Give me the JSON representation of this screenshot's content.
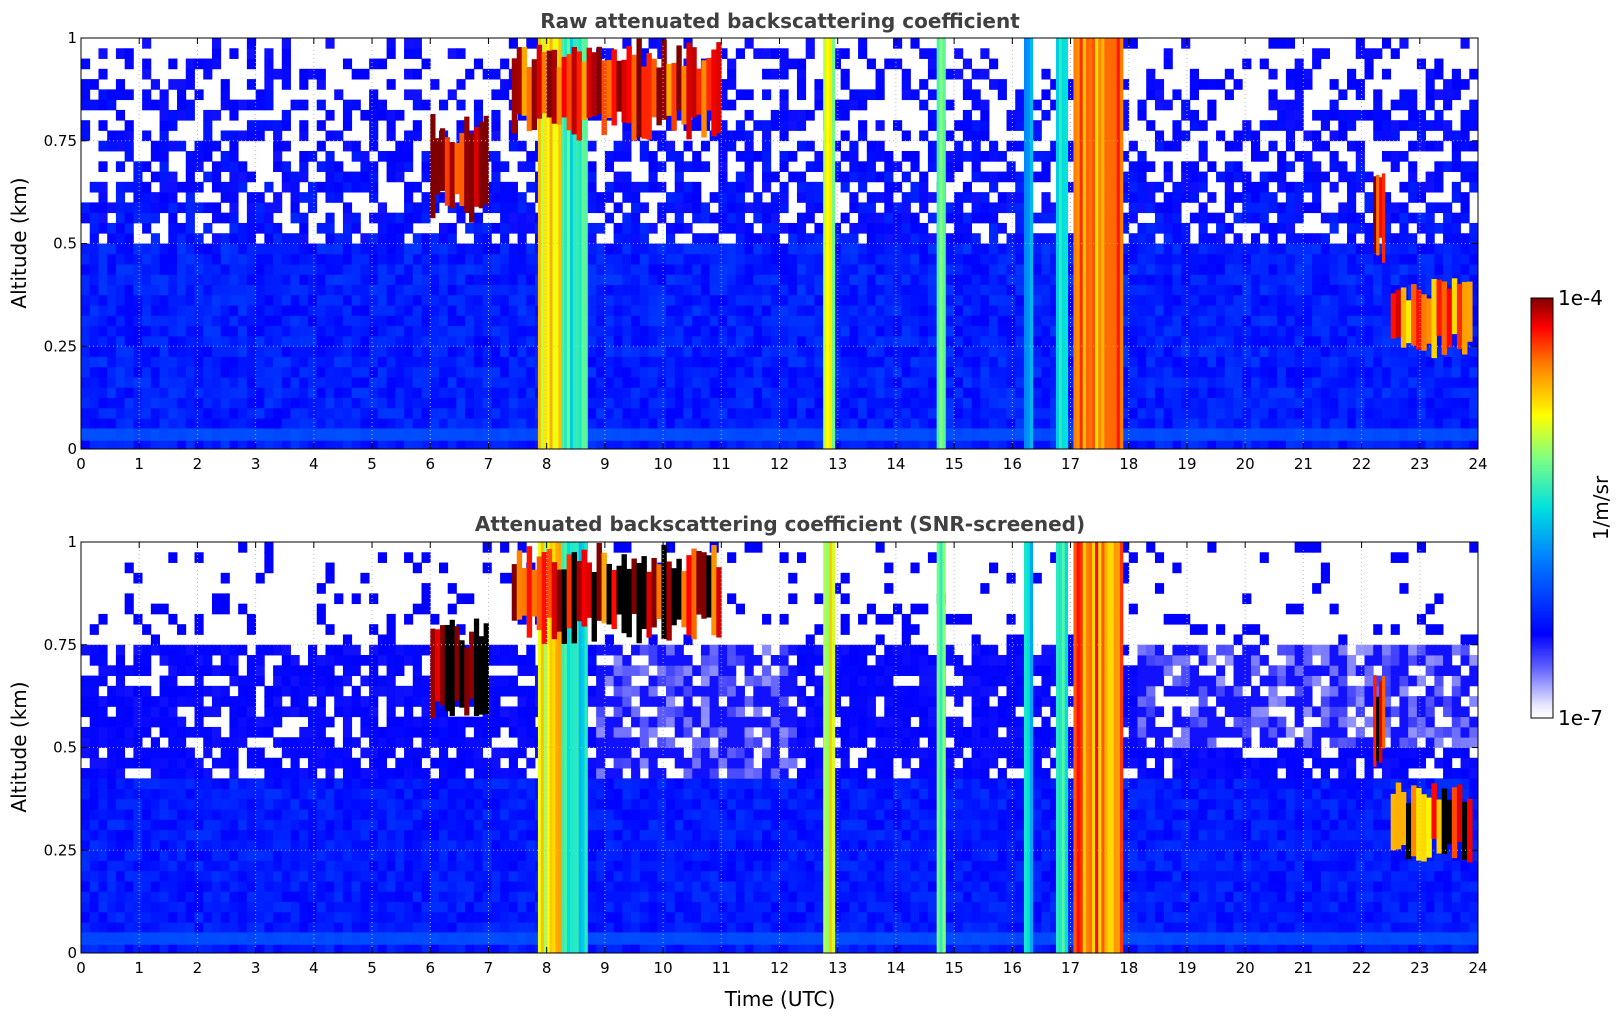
{
  "chart_data": [
    {
      "type": "heatmap",
      "title": "Raw attenuated backscattering coefficient",
      "xlabel": "",
      "ylabel": "Altitude (km)",
      "xlim": [
        0,
        24
      ],
      "ylim": [
        0,
        1
      ],
      "xticks": [
        "0",
        "1",
        "2",
        "3",
        "4",
        "5",
        "6",
        "7",
        "8",
        "9",
        "10",
        "11",
        "12",
        "13",
        "14",
        "15",
        "16",
        "17",
        "18",
        "19",
        "20",
        "21",
        "22",
        "23",
        "24"
      ],
      "yticks": [
        "0",
        "0.25",
        "0.5",
        "0.75",
        "1"
      ],
      "grid": true,
      "screened": false
    },
    {
      "type": "heatmap",
      "title": "Attenuated backscattering coefficient (SNR-screened)",
      "xlabel": "Time (UTC)",
      "ylabel": "Altitude (km)",
      "xlim": [
        0,
        24
      ],
      "ylim": [
        0,
        1
      ],
      "xticks": [
        "0",
        "1",
        "2",
        "3",
        "4",
        "5",
        "6",
        "7",
        "8",
        "9",
        "10",
        "11",
        "12",
        "13",
        "14",
        "15",
        "16",
        "17",
        "18",
        "19",
        "20",
        "21",
        "22",
        "23",
        "24"
      ],
      "yticks": [
        "0",
        "0.25",
        "0.5",
        "0.75",
        "1"
      ],
      "grid": true,
      "screened": true
    }
  ],
  "colorbar": {
    "label": "1/m/sr",
    "max_label": "1e-4",
    "min_label": "1e-7",
    "scale": "log",
    "range": [
      1e-07,
      0.0001
    ],
    "colormap": "jet-with-white-low-end"
  },
  "features": {
    "bright_bands": [
      {
        "x0": 7.85,
        "x1": 8.25,
        "level": 0.72
      },
      {
        "x0": 8.25,
        "x1": 8.7,
        "level": 0.52
      },
      {
        "x0": 12.75,
        "x1": 12.95,
        "level": 0.68
      },
      {
        "x0": 14.7,
        "x1": 14.85,
        "level": 0.62
      },
      {
        "x0": 16.2,
        "x1": 16.35,
        "level": 0.48
      },
      {
        "x0": 16.75,
        "x1": 16.95,
        "level": 0.5
      },
      {
        "x0": 17.05,
        "x1": 17.9,
        "level": 0.84
      }
    ],
    "cloud_patches": [
      {
        "x0": 6.0,
        "x1": 7.0,
        "y0": 0.55,
        "y1": 0.82,
        "level": 0.97
      },
      {
        "x0": 7.4,
        "x1": 11.0,
        "y0": 0.75,
        "y1": 1.0,
        "level": 0.92
      },
      {
        "x0": 22.2,
        "x1": 22.4,
        "y0": 0.45,
        "y1": 0.68,
        "level": 0.95
      },
      {
        "x0": 22.5,
        "x1": 23.9,
        "y0": 0.22,
        "y1": 0.42,
        "level": 0.85
      }
    ]
  }
}
